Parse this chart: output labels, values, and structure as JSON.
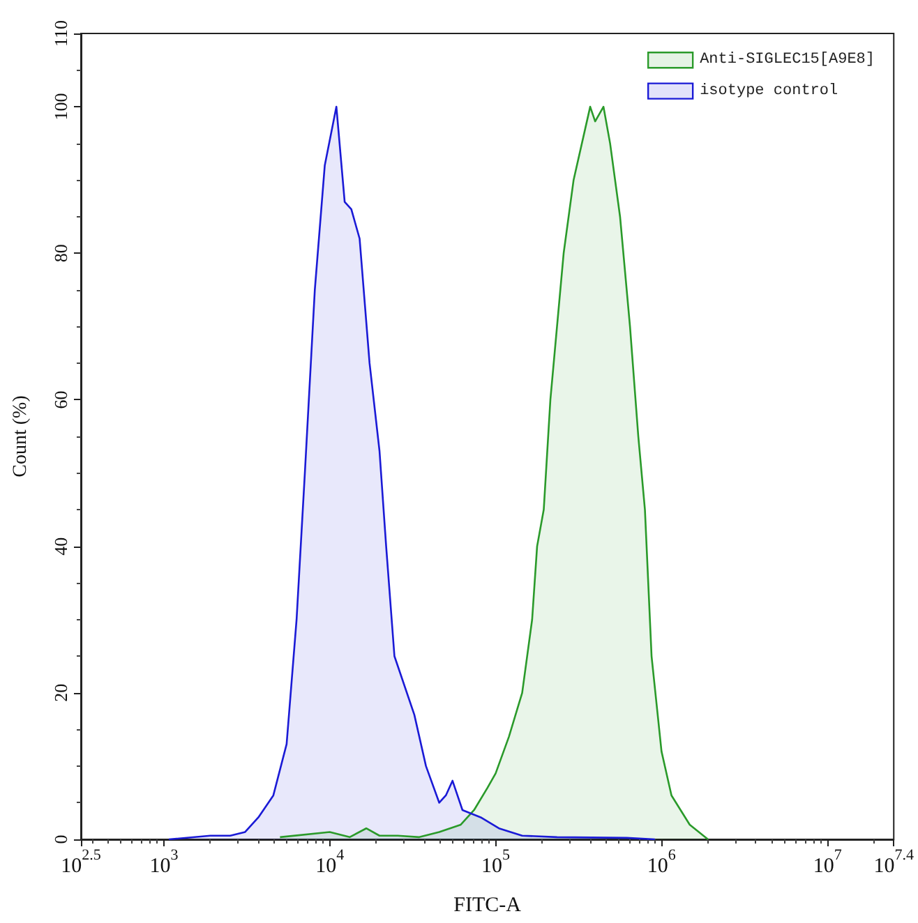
{
  "chart_data": {
    "type": "area",
    "xlabel": "FITC-A",
    "ylabel": "Count (%)",
    "log": "x",
    "grid": false,
    "legend": "top right",
    "marker": "none",
    "line_style": "solid",
    "xlim": [
      316.23,
      25118864
    ],
    "xticks": [
      {
        "value": 316.23,
        "label": "10$^{2.5}$"
      },
      {
        "value": 1000,
        "label": "10$^{3}$"
      },
      {
        "value": 10000,
        "label": "10$^{4}$"
      },
      {
        "value": 100000,
        "label": "10$^{5}$"
      },
      {
        "value": 1000000,
        "label": "10$^{6}$"
      },
      {
        "value": 10000000,
        "label": "10$^{7}$"
      },
      {
        "value": 25118864,
        "label": "10$^{7.4}$"
      }
    ],
    "ylim": [
      0,
      110
    ],
    "yticks": [
      0,
      20,
      40,
      60,
      80,
      100,
      110
    ],
    "series": [
      {
        "name": "Anti-SIGLEC15[A9E8]",
        "color": "#2a9a2a",
        "x": [
          5012,
          10000,
          13183,
          16596,
          19953,
          25704,
          34674,
          45709,
          61660,
          74131,
          89125,
          100000,
          120226,
          144544,
          165959,
          177828,
          194984,
          213796,
          257040,
          295121,
          346737,
          371535,
          398107,
          446684,
          489779,
          562341,
          645654,
          724436,
          794328,
          870964,
          1000000,
          1148154,
          1479108,
          1905461
        ],
        "values": [
          0.3,
          1,
          0.3,
          1.5,
          0.5,
          0.5,
          0.3,
          1,
          2,
          4,
          7,
          9,
          14,
          20,
          30,
          40,
          45,
          60,
          80,
          90,
          97,
          100,
          98,
          100,
          95,
          85,
          70,
          55,
          45,
          25,
          12,
          6,
          2,
          0
        ]
      },
      {
        "name": "isotype control",
        "color": "#1a1ad6",
        "x": [
          1072,
          1905,
          2512,
          3090,
          3715,
          4571,
          5495,
          6310,
          7079,
          8128,
          9333,
          10965,
          12303,
          13490,
          15136,
          17378,
          19953,
          21878,
          24547,
          32359,
          38019,
          45709,
          50119,
          54954,
          63096,
          81283,
          104713,
          144544,
          234423,
          616595,
          912011
        ],
        "values": [
          0,
          0.5,
          0.5,
          1,
          3,
          6,
          13,
          30,
          50,
          75,
          92,
          100,
          87,
          86,
          82,
          65,
          53,
          40,
          25,
          17,
          10,
          5,
          6,
          8,
          4,
          3,
          1.5,
          0.5,
          0.3,
          0.2,
          0
        ]
      }
    ]
  }
}
